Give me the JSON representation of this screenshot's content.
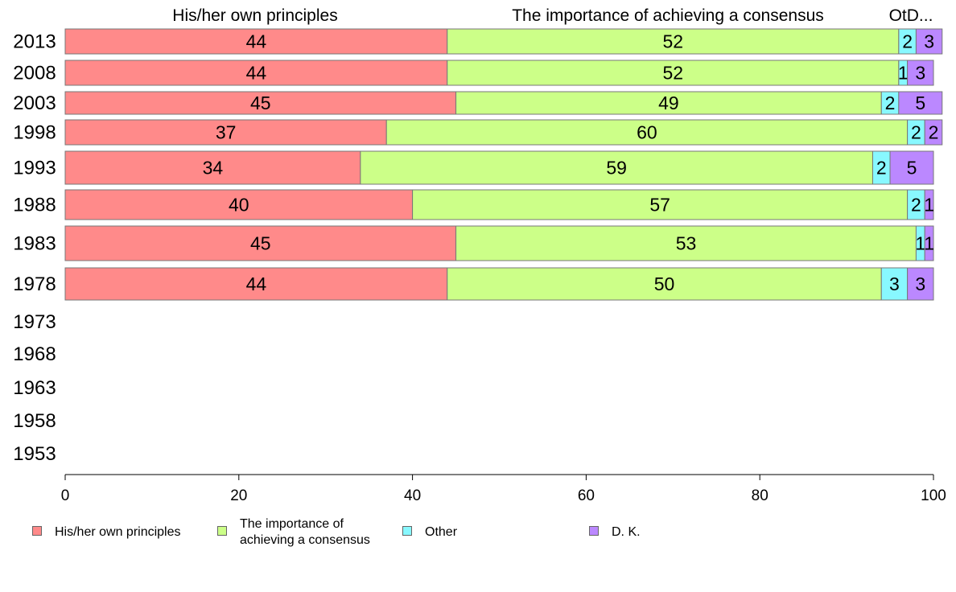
{
  "chart_data": {
    "type": "bar",
    "orientation": "horizontal",
    "stacked": true,
    "categories": [
      "2013",
      "2008",
      "2003",
      "1998",
      "1993",
      "1988",
      "1983",
      "1978",
      "1973",
      "1968",
      "1963",
      "1958",
      "1953"
    ],
    "series": [
      {
        "name": "His/her own principles",
        "color": "#ff8a8a",
        "values": [
          44,
          44,
          45,
          37,
          34,
          40,
          45,
          44,
          null,
          null,
          null,
          null,
          null
        ]
      },
      {
        "name": "The importance of achieving a consensus",
        "color": "#ccff88",
        "values": [
          52,
          52,
          49,
          60,
          59,
          57,
          53,
          50,
          null,
          null,
          null,
          null,
          null
        ]
      },
      {
        "name": "Other",
        "color": "#88f8ff",
        "values": [
          2,
          1,
          2,
          2,
          2,
          2,
          1,
          3,
          null,
          null,
          null,
          null,
          null
        ]
      },
      {
        "name": "D. K.",
        "color": "#bb88ff",
        "values": [
          3,
          3,
          5,
          2,
          5,
          1,
          1,
          3,
          null,
          null,
          null,
          null,
          null
        ]
      }
    ],
    "column_headers": [
      "His/her own principles",
      "The importance of achieving a consensus",
      "OtD..."
    ],
    "xlim": [
      0,
      100
    ],
    "xticks": [
      "0",
      "20",
      "40",
      "60",
      "80",
      "100"
    ],
    "grid": false,
    "legend": {
      "position": "bottom",
      "items": [
        {
          "label": "His/her own principles",
          "color": "#ff8a8a"
        },
        {
          "label": "The importance of\nachieving a consensus",
          "color": "#ccff88"
        },
        {
          "label": "Other",
          "color": "#88f8ff"
        },
        {
          "label": "D. K.",
          "color": "#bb88ff"
        }
      ]
    }
  }
}
